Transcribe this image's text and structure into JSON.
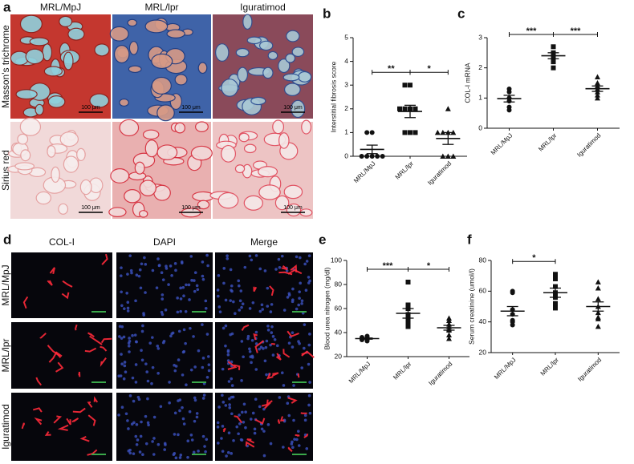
{
  "micrographs": [
    {
      "letter": "a",
      "columns": [
        "MRL/MpJ",
        "MRL/lpr",
        "Iguratimod"
      ],
      "rows": [
        "Masson's trichrome",
        "Sirius red"
      ],
      "scale_bars": [
        "100 μm",
        "100 μm",
        "100 μm",
        "100 μm",
        "100 μm",
        "100 μm"
      ]
    },
    {
      "letter": "d",
      "columns": [
        "COL-I",
        "DAPI",
        "Merge"
      ],
      "rows": [
        "MRL/MpJ",
        "MRL/lpr",
        "Iguratimod"
      ]
    }
  ],
  "chart_data": [
    {
      "type": "dot",
      "letter": "b",
      "ylabel": "Interstitial fibrosis score",
      "categories": [
        "MRL/MpJ",
        "MRL/lpr",
        "Iguratimod"
      ],
      "groups": [
        {
          "marker": "circle",
          "values": [
            1,
            1,
            0,
            0,
            0,
            0,
            0
          ],
          "mean": 0.29,
          "sem": 0.18
        },
        {
          "marker": "square",
          "values": [
            3,
            3,
            2,
            2,
            2,
            1,
            1,
            1,
            2
          ],
          "mean": 1.89,
          "sem": 0.26
        },
        {
          "marker": "triangle",
          "values": [
            2,
            1,
            1,
            1,
            1,
            0,
            0,
            0
          ],
          "mean": 0.75,
          "sem": 0.25
        }
      ],
      "significance": [
        {
          "between": [
            0,
            1
          ],
          "text": "**"
        },
        {
          "between": [
            1,
            2
          ],
          "text": "*"
        }
      ],
      "ylim": [
        0,
        5
      ],
      "yticks": [
        0,
        1,
        2,
        3,
        4,
        5
      ]
    },
    {
      "type": "dot",
      "letter": "c",
      "ylabel": "COL-I mRNA",
      "categories": [
        "MRL/MpJ",
        "MRL/lpr",
        "Iguratimod"
      ],
      "groups": [
        {
          "marker": "circle",
          "values": [
            1.3,
            1.2,
            1.0,
            0.9,
            0.7,
            0.6
          ],
          "mean": 0.98,
          "sem": 0.11
        },
        {
          "marker": "square",
          "values": [
            2.7,
            2.5,
            2.4,
            2.2,
            2.0,
            2.3
          ],
          "mean": 2.4,
          "sem": 0.1
        },
        {
          "marker": "triangle",
          "values": [
            1.7,
            1.5,
            1.4,
            1.3,
            1.2,
            1.1,
            1.0
          ],
          "mean": 1.31,
          "sem": 0.09
        }
      ],
      "significance": [
        {
          "between": [
            0,
            1
          ],
          "text": "***"
        },
        {
          "between": [
            1,
            2
          ],
          "text": "***"
        }
      ],
      "ylim": [
        0,
        3
      ],
      "yticks": [
        0,
        1,
        2,
        3
      ]
    },
    {
      "type": "dot",
      "letter": "e",
      "ylabel": "Blood urea nitrogen (mg/dl)",
      "categories": [
        "MRL/MpJ",
        "MRL/lpr",
        "Iguratimod"
      ],
      "groups": [
        {
          "marker": "circle",
          "values": [
            37,
            36,
            35,
            35,
            34,
            34,
            33,
            36
          ],
          "mean": 35,
          "sem": 0.5
        },
        {
          "marker": "square",
          "values": [
            82,
            63,
            61,
            55,
            52,
            48,
            46,
            45,
            60
          ],
          "mean": 56,
          "sem": 4
        },
        {
          "marker": "triangle",
          "values": [
            52,
            50,
            47,
            45,
            43,
            42,
            38,
            35
          ],
          "mean": 44,
          "sem": 2
        }
      ],
      "significance": [
        {
          "between": [
            0,
            1
          ],
          "text": "***"
        },
        {
          "between": [
            1,
            2
          ],
          "text": "*"
        }
      ],
      "ylim": [
        20,
        100
      ],
      "yticks": [
        20,
        40,
        60,
        80,
        100
      ]
    },
    {
      "type": "dot",
      "letter": "f",
      "ylabel": "Serum creatinine (umol/l)",
      "categories": [
        "MRL/MpJ",
        "MRL/lpr",
        "Iguratimod"
      ],
      "groups": [
        {
          "marker": "circle",
          "values": [
            60,
            59,
            48,
            45,
            41,
            38,
            40
          ],
          "mean": 47,
          "sem": 3
        },
        {
          "marker": "square",
          "values": [
            71,
            70,
            68,
            63,
            59,
            56,
            52,
            50,
            49
          ],
          "mean": 59,
          "sem": 3
        },
        {
          "marker": "triangle",
          "values": [
            66,
            62,
            55,
            50,
            46,
            43,
            42,
            37
          ],
          "mean": 50,
          "sem": 3
        }
      ],
      "significance": [
        {
          "between": [
            0,
            1
          ],
          "text": "*"
        }
      ],
      "ylim": [
        20,
        80
      ],
      "yticks": [
        20,
        40,
        60,
        80
      ]
    }
  ]
}
